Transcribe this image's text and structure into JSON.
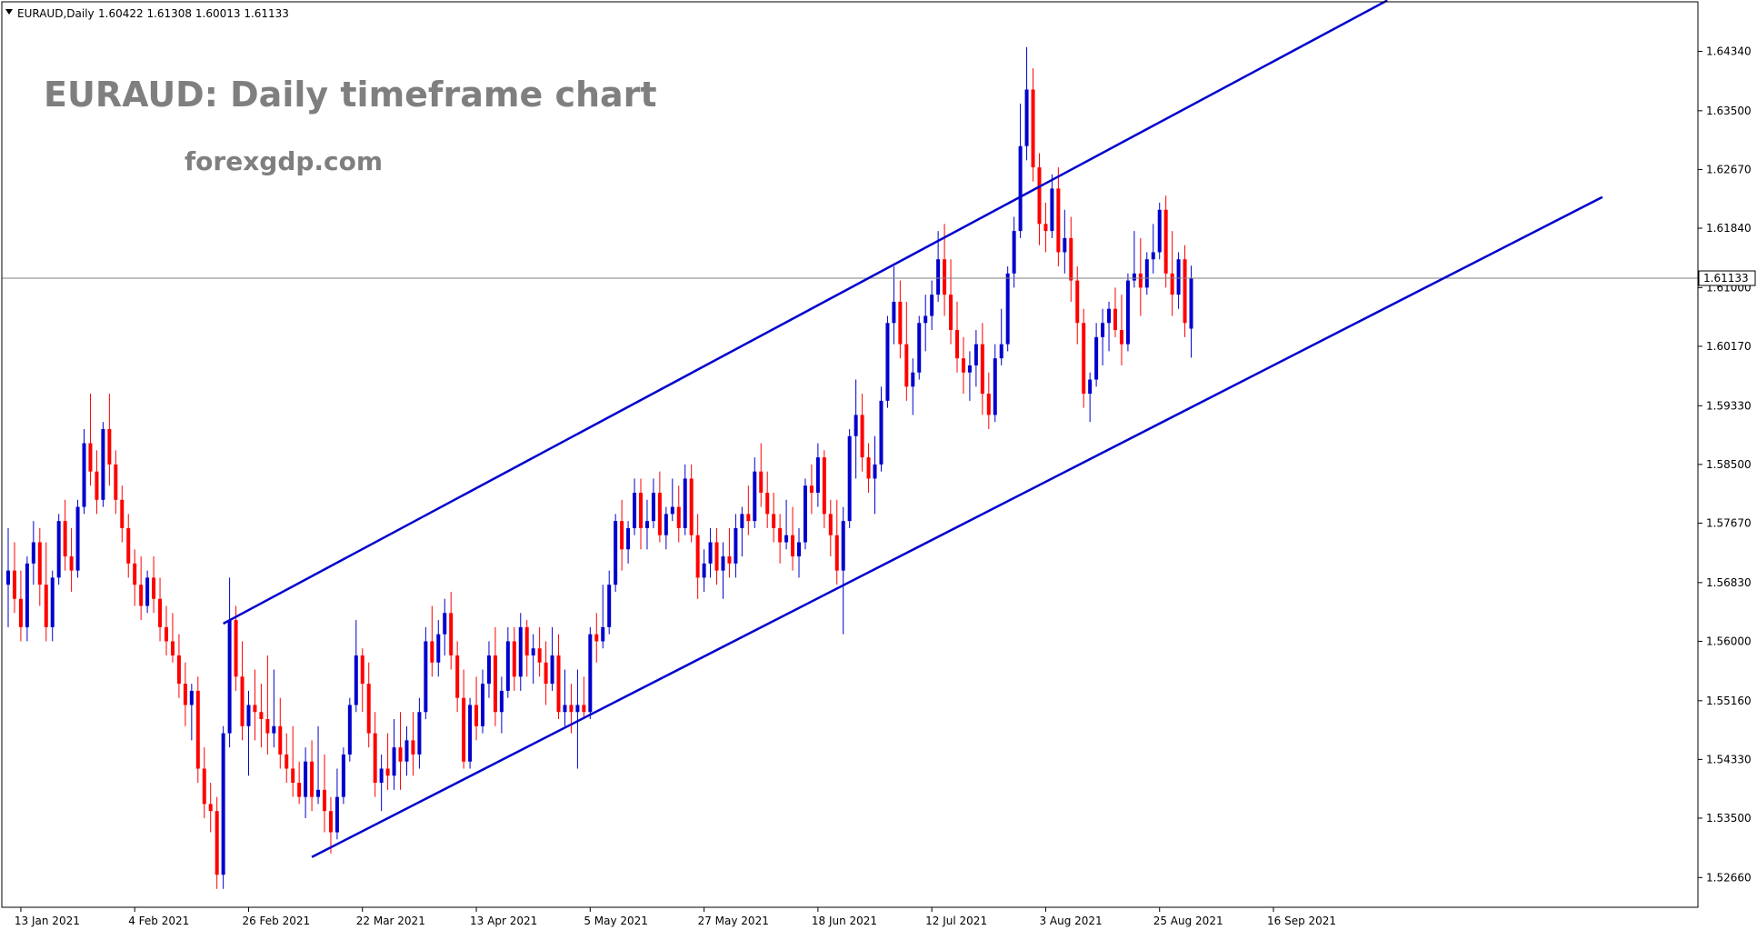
{
  "header": {
    "symbol": "EURAUD,Daily",
    "ohlc": "1.60422 1.61308 1.60013 1.61133"
  },
  "annotations": {
    "title": "EURAUD: Daily timeframe chart",
    "watermark": "forexgdp.com"
  },
  "current_price_label": "1.61133",
  "colors": {
    "bull": "#0000cd",
    "bear": "#ff0000",
    "channel": "#0000cd",
    "price_line": "#808080",
    "grid": "none"
  },
  "chart_data": {
    "type": "candlestick",
    "title": "EURAUD: Daily timeframe chart",
    "grid": false,
    "y_ticks": [
      "1.64340",
      "1.63500",
      "1.62670",
      "1.61840",
      "1.61000",
      "1.60170",
      "1.59330",
      "1.58500",
      "1.57670",
      "1.56830",
      "1.56000",
      "1.55160",
      "1.54330",
      "1.53500",
      "1.52660"
    ],
    "ylim": [
      1.5224,
      1.6504
    ],
    "x_ticks": [
      {
        "label": "13 Jan 2021",
        "index": 2
      },
      {
        "label": "4 Feb 2021",
        "index": 20
      },
      {
        "label": "26 Feb 2021",
        "index": 38
      },
      {
        "label": "22 Mar 2021",
        "index": 56
      },
      {
        "label": "13 Apr 2021",
        "index": 74
      },
      {
        "label": "5 May 2021",
        "index": 92
      },
      {
        "label": "27 May 2021",
        "index": 110
      },
      {
        "label": "18 Jun 2021",
        "index": 128
      },
      {
        "label": "12 Jul 2021",
        "index": 146
      },
      {
        "label": "3 Aug 2021",
        "index": 164
      },
      {
        "label": "25 Aug 2021",
        "index": 182
      },
      {
        "label": "16 Sep 2021",
        "index": 200
      }
    ],
    "last_price": 1.61133,
    "ohlc": [
      [
        1.568,
        1.576,
        1.562,
        1.57
      ],
      [
        1.57,
        1.574,
        1.564,
        1.566
      ],
      [
        1.566,
        1.57,
        1.56,
        1.562
      ],
      [
        1.562,
        1.572,
        1.56,
        1.571
      ],
      [
        1.571,
        1.577,
        1.568,
        1.574
      ],
      [
        1.574,
        1.576,
        1.565,
        1.568
      ],
      [
        1.568,
        1.574,
        1.56,
        1.562
      ],
      [
        1.562,
        1.57,
        1.56,
        1.569
      ],
      [
        1.569,
        1.578,
        1.568,
        1.577
      ],
      [
        1.577,
        1.58,
        1.57,
        1.572
      ],
      [
        1.572,
        1.576,
        1.567,
        1.57
      ],
      [
        1.57,
        1.58,
        1.569,
        1.579
      ],
      [
        1.579,
        1.59,
        1.578,
        1.588
      ],
      [
        1.588,
        1.595,
        1.582,
        1.584
      ],
      [
        1.584,
        1.587,
        1.578,
        1.58
      ],
      [
        1.58,
        1.591,
        1.579,
        1.59
      ],
      [
        1.59,
        1.595,
        1.582,
        1.585
      ],
      [
        1.585,
        1.587,
        1.578,
        1.58
      ],
      [
        1.58,
        1.582,
        1.574,
        1.576
      ],
      [
        1.576,
        1.578,
        1.569,
        1.571
      ],
      [
        1.571,
        1.573,
        1.565,
        1.568
      ],
      [
        1.568,
        1.572,
        1.563,
        1.565
      ],
      [
        1.565,
        1.57,
        1.564,
        1.569
      ],
      [
        1.569,
        1.572,
        1.564,
        1.566
      ],
      [
        1.566,
        1.569,
        1.56,
        1.562
      ],
      [
        1.562,
        1.565,
        1.558,
        1.56
      ],
      [
        1.56,
        1.564,
        1.557,
        1.558
      ],
      [
        1.558,
        1.561,
        1.552,
        1.554
      ],
      [
        1.554,
        1.557,
        1.548,
        1.551
      ],
      [
        1.551,
        1.554,
        1.546,
        1.553
      ],
      [
        1.553,
        1.555,
        1.54,
        1.542
      ],
      [
        1.542,
        1.545,
        1.535,
        1.537
      ],
      [
        1.537,
        1.54,
        1.533,
        1.536
      ],
      [
        1.536,
        1.538,
        1.525,
        1.527
      ],
      [
        1.527,
        1.548,
        1.525,
        1.547
      ],
      [
        1.547,
        1.569,
        1.545,
        1.563
      ],
      [
        1.563,
        1.565,
        1.553,
        1.555
      ],
      [
        1.555,
        1.56,
        1.546,
        1.548
      ],
      [
        1.548,
        1.553,
        1.541,
        1.551
      ],
      [
        1.551,
        1.556,
        1.546,
        1.55
      ],
      [
        1.55,
        1.554,
        1.545,
        1.549
      ],
      [
        1.549,
        1.558,
        1.544,
        1.547
      ],
      [
        1.547,
        1.556,
        1.545,
        1.548
      ],
      [
        1.548,
        1.552,
        1.542,
        1.544
      ],
      [
        1.544,
        1.547,
        1.54,
        1.542
      ],
      [
        1.542,
        1.548,
        1.538,
        1.54
      ],
      [
        1.54,
        1.543,
        1.537,
        1.538
      ],
      [
        1.538,
        1.545,
        1.535,
        1.543
      ],
      [
        1.543,
        1.546,
        1.536,
        1.538
      ],
      [
        1.538,
        1.548,
        1.537,
        1.539
      ],
      [
        1.539,
        1.544,
        1.533,
        1.536
      ],
      [
        1.536,
        1.538,
        1.53,
        1.533
      ],
      [
        1.533,
        1.542,
        1.532,
        1.538
      ],
      [
        1.538,
        1.545,
        1.537,
        1.544
      ],
      [
        1.544,
        1.552,
        1.543,
        1.551
      ],
      [
        1.551,
        1.563,
        1.55,
        1.558
      ],
      [
        1.558,
        1.559,
        1.55,
        1.554
      ],
      [
        1.554,
        1.557,
        1.545,
        1.547
      ],
      [
        1.547,
        1.55,
        1.538,
        1.54
      ],
      [
        1.54,
        1.544,
        1.536,
        1.542
      ],
      [
        1.542,
        1.547,
        1.539,
        1.541
      ],
      [
        1.541,
        1.549,
        1.539,
        1.545
      ],
      [
        1.545,
        1.55,
        1.539,
        1.543
      ],
      [
        1.543,
        1.548,
        1.541,
        1.546
      ],
      [
        1.546,
        1.55,
        1.541,
        1.544
      ],
      [
        1.544,
        1.552,
        1.542,
        1.55
      ],
      [
        1.55,
        1.562,
        1.549,
        1.56
      ],
      [
        1.56,
        1.565,
        1.555,
        1.557
      ],
      [
        1.557,
        1.563,
        1.555,
        1.561
      ],
      [
        1.561,
        1.566,
        1.558,
        1.564
      ],
      [
        1.564,
        1.567,
        1.556,
        1.558
      ],
      [
        1.558,
        1.56,
        1.55,
        1.552
      ],
      [
        1.552,
        1.556,
        1.542,
        1.543
      ],
      [
        1.543,
        1.552,
        1.542,
        1.551
      ],
      [
        1.551,
        1.555,
        1.546,
        1.548
      ],
      [
        1.548,
        1.556,
        1.547,
        1.554
      ],
      [
        1.554,
        1.56,
        1.552,
        1.558
      ],
      [
        1.558,
        1.562,
        1.548,
        1.55
      ],
      [
        1.55,
        1.555,
        1.547,
        1.553
      ],
      [
        1.553,
        1.562,
        1.552,
        1.56
      ],
      [
        1.56,
        1.562,
        1.553,
        1.555
      ],
      [
        1.555,
        1.564,
        1.553,
        1.562
      ],
      [
        1.562,
        1.563,
        1.555,
        1.558
      ],
      [
        1.558,
        1.561,
        1.554,
        1.559
      ],
      [
        1.559,
        1.562,
        1.555,
        1.557
      ],
      [
        1.557,
        1.56,
        1.551,
        1.554
      ],
      [
        1.554,
        1.562,
        1.553,
        1.558
      ],
      [
        1.558,
        1.561,
        1.549,
        1.55
      ],
      [
        1.55,
        1.556,
        1.548,
        1.551
      ],
      [
        1.551,
        1.554,
        1.547,
        1.55
      ],
      [
        1.55,
        1.556,
        1.542,
        1.551
      ],
      [
        1.551,
        1.555,
        1.549,
        1.55
      ],
      [
        1.55,
        1.562,
        1.549,
        1.561
      ],
      [
        1.561,
        1.564,
        1.557,
        1.56
      ],
      [
        1.56,
        1.568,
        1.559,
        1.562
      ],
      [
        1.562,
        1.57,
        1.561,
        1.568
      ],
      [
        1.568,
        1.578,
        1.567,
        1.577
      ],
      [
        1.577,
        1.58,
        1.57,
        1.573
      ],
      [
        1.573,
        1.577,
        1.571,
        1.576
      ],
      [
        1.576,
        1.583,
        1.575,
        1.581
      ],
      [
        1.581,
        1.583,
        1.573,
        1.576
      ],
      [
        1.576,
        1.58,
        1.573,
        1.577
      ],
      [
        1.577,
        1.583,
        1.576,
        1.581
      ],
      [
        1.581,
        1.584,
        1.574,
        1.575
      ],
      [
        1.575,
        1.579,
        1.573,
        1.578
      ],
      [
        1.578,
        1.583,
        1.577,
        1.579
      ],
      [
        1.579,
        1.582,
        1.574,
        1.576
      ],
      [
        1.576,
        1.585,
        1.575,
        1.583
      ],
      [
        1.583,
        1.585,
        1.574,
        1.575
      ],
      [
        1.575,
        1.578,
        1.566,
        1.569
      ],
      [
        1.569,
        1.573,
        1.567,
        1.571
      ],
      [
        1.571,
        1.576,
        1.569,
        1.574
      ],
      [
        1.574,
        1.576,
        1.568,
        1.57
      ],
      [
        1.57,
        1.574,
        1.566,
        1.572
      ],
      [
        1.572,
        1.576,
        1.569,
        1.571
      ],
      [
        1.571,
        1.578,
        1.569,
        1.576
      ],
      [
        1.576,
        1.579,
        1.572,
        1.578
      ],
      [
        1.578,
        1.582,
        1.575,
        1.577
      ],
      [
        1.577,
        1.586,
        1.576,
        1.584
      ],
      [
        1.584,
        1.588,
        1.579,
        1.581
      ],
      [
        1.581,
        1.584,
        1.576,
        1.578
      ],
      [
        1.578,
        1.581,
        1.574,
        1.576
      ],
      [
        1.576,
        1.578,
        1.571,
        1.574
      ],
      [
        1.574,
        1.58,
        1.573,
        1.575
      ],
      [
        1.575,
        1.579,
        1.57,
        1.572
      ],
      [
        1.572,
        1.576,
        1.569,
        1.574
      ],
      [
        1.574,
        1.583,
        1.573,
        1.582
      ],
      [
        1.582,
        1.585,
        1.578,
        1.581
      ],
      [
        1.581,
        1.588,
        1.579,
        1.586
      ],
      [
        1.586,
        1.587,
        1.576,
        1.578
      ],
      [
        1.578,
        1.58,
        1.572,
        1.575
      ],
      [
        1.575,
        1.58,
        1.568,
        1.57
      ],
      [
        1.57,
        1.579,
        1.561,
        1.577
      ],
      [
        1.577,
        1.59,
        1.576,
        1.589
      ],
      [
        1.589,
        1.597,
        1.583,
        1.592
      ],
      [
        1.592,
        1.595,
        1.584,
        1.586
      ],
      [
        1.586,
        1.588,
        1.581,
        1.583
      ],
      [
        1.583,
        1.589,
        1.578,
        1.585
      ],
      [
        1.585,
        1.596,
        1.584,
        1.594
      ],
      [
        1.594,
        1.606,
        1.593,
        1.605
      ],
      [
        1.605,
        1.613,
        1.602,
        1.608
      ],
      [
        1.608,
        1.611,
        1.6,
        1.602
      ],
      [
        1.602,
        1.608,
        1.594,
        1.596
      ],
      [
        1.596,
        1.6,
        1.592,
        1.598
      ],
      [
        1.598,
        1.606,
        1.597,
        1.605
      ],
      [
        1.605,
        1.609,
        1.601,
        1.606
      ],
      [
        1.606,
        1.611,
        1.604,
        1.609
      ],
      [
        1.609,
        1.618,
        1.608,
        1.614
      ],
      [
        1.614,
        1.619,
        1.606,
        1.609
      ],
      [
        1.609,
        1.614,
        1.602,
        1.604
      ],
      [
        1.604,
        1.608,
        1.598,
        1.6
      ],
      [
        1.6,
        1.603,
        1.595,
        1.598
      ],
      [
        1.598,
        1.601,
        1.594,
        1.599
      ],
      [
        1.599,
        1.604,
        1.596,
        1.602
      ],
      [
        1.602,
        1.605,
        1.592,
        1.595
      ],
      [
        1.595,
        1.598,
        1.59,
        1.592
      ],
      [
        1.592,
        1.602,
        1.591,
        1.6
      ],
      [
        1.6,
        1.607,
        1.599,
        1.602
      ],
      [
        1.602,
        1.613,
        1.601,
        1.612
      ],
      [
        1.612,
        1.62,
        1.61,
        1.618
      ],
      [
        1.618,
        1.636,
        1.617,
        1.63
      ],
      [
        1.63,
        1.644,
        1.628,
        1.638
      ],
      [
        1.638,
        1.641,
        1.625,
        1.627
      ],
      [
        1.627,
        1.629,
        1.616,
        1.619
      ],
      [
        1.619,
        1.622,
        1.615,
        1.618
      ],
      [
        1.618,
        1.626,
        1.617,
        1.624
      ],
      [
        1.624,
        1.627,
        1.613,
        1.615
      ],
      [
        1.615,
        1.621,
        1.612,
        1.617
      ],
      [
        1.617,
        1.62,
        1.608,
        1.611
      ],
      [
        1.611,
        1.613,
        1.602,
        1.605
      ],
      [
        1.605,
        1.607,
        1.593,
        1.595
      ],
      [
        1.595,
        1.598,
        1.591,
        1.597
      ],
      [
        1.597,
        1.605,
        1.596,
        1.603
      ],
      [
        1.603,
        1.607,
        1.599,
        1.605
      ],
      [
        1.605,
        1.608,
        1.601,
        1.607
      ],
      [
        1.607,
        1.61,
        1.603,
        1.604
      ],
      [
        1.604,
        1.609,
        1.599,
        1.602
      ],
      [
        1.602,
        1.612,
        1.601,
        1.611
      ],
      [
        1.611,
        1.618,
        1.61,
        1.612
      ],
      [
        1.612,
        1.617,
        1.606,
        1.61
      ],
      [
        1.61,
        1.615,
        1.609,
        1.614
      ],
      [
        1.614,
        1.619,
        1.612,
        1.615
      ],
      [
        1.615,
        1.622,
        1.614,
        1.621
      ],
      [
        1.621,
        1.623,
        1.61,
        1.612
      ],
      [
        1.612,
        1.618,
        1.606,
        1.609
      ],
      [
        1.609,
        1.615,
        1.607,
        1.614
      ],
      [
        1.614,
        1.616,
        1.603,
        1.605
      ],
      [
        1.6042,
        1.6131,
        1.6001,
        1.6113
      ]
    ],
    "channel_upper": [
      {
        "index": 34,
        "price": 1.5625
      },
      {
        "index": 218,
        "price": 1.6506
      }
    ],
    "channel_lower": [
      {
        "index": 48,
        "price": 1.5295
      },
      {
        "index": 252,
        "price": 1.6228
      }
    ]
  }
}
